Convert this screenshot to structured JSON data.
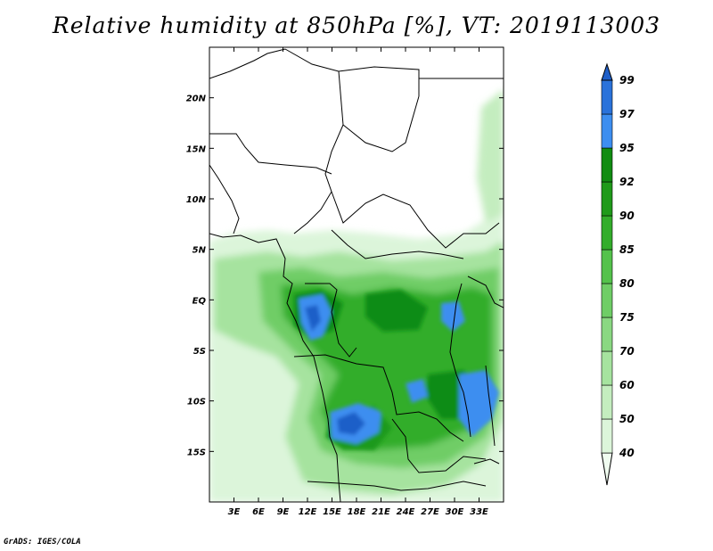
{
  "title": "Relative humidity at 850hPa [%], VT: 2019113003",
  "credit": "GrADS: IGES/COLA",
  "map": {
    "variable": "Relative humidity",
    "level": "850hPa",
    "units": "%",
    "valid_time": "2019113003",
    "lon_range": [
      0,
      36
    ],
    "lat_range": [
      -20,
      25
    ],
    "lon_ticks": [
      "3E",
      "6E",
      "9E",
      "12E",
      "15E",
      "18E",
      "21E",
      "24E",
      "27E",
      "30E",
      "33E"
    ],
    "lat_ticks": [
      "20N",
      "15N",
      "10N",
      "5N",
      "EQ",
      "5S",
      "10S",
      "15S"
    ],
    "colorbar": {
      "labels": [
        "40",
        "50",
        "60",
        "70",
        "75",
        "80",
        "85",
        "90",
        "92",
        "95",
        "97",
        "99"
      ],
      "colors": [
        "#f0fcf0",
        "#dcf5da",
        "#c4edbf",
        "#a6e39f",
        "#8ad882",
        "#6fcd66",
        "#54c24b",
        "#33ad2b",
        "#1f9a1a",
        "#118c12",
        "#3d8ef0",
        "#2a72da",
        "#1f5fc8"
      ]
    }
  }
}
